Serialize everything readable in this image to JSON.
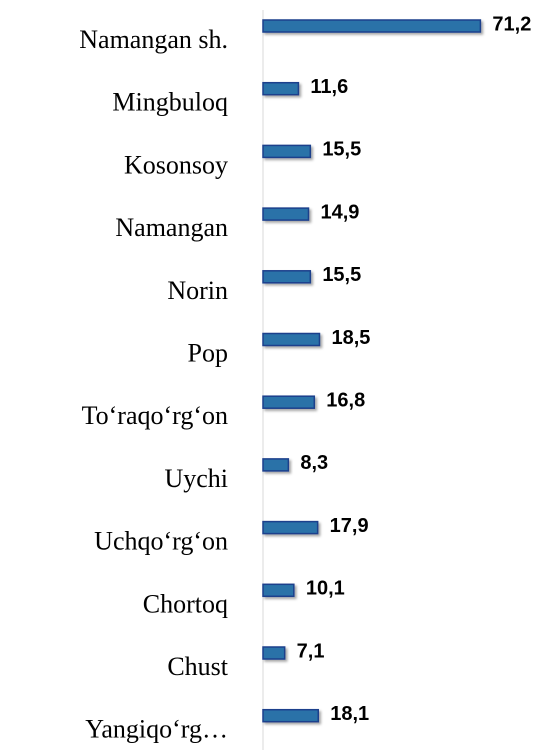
{
  "chart_data": {
    "type": "barh",
    "categories": [
      "Namangan sh.",
      "Mingbuloq",
      "Kosonsoy",
      "Namangan",
      "Norin",
      "Pop",
      "To‘raqo‘rg‘on",
      "Uychi",
      "Uchqo‘rg‘on",
      "Chortoq",
      "Chust",
      "Yangiqo‘rg…"
    ],
    "values": [
      71.2,
      11.6,
      15.5,
      14.9,
      15.5,
      18.5,
      16.8,
      8.3,
      17.9,
      10.1,
      7.1,
      18.1
    ],
    "value_labels": [
      "71,2",
      "11,6",
      "15,5",
      "14,9",
      "15,5",
      "18,5",
      "16,8",
      "8,3",
      "17,9",
      "10,1",
      "7,1",
      "18,1"
    ],
    "color": "#2a72a8",
    "xlim": [
      0,
      75
    ]
  }
}
